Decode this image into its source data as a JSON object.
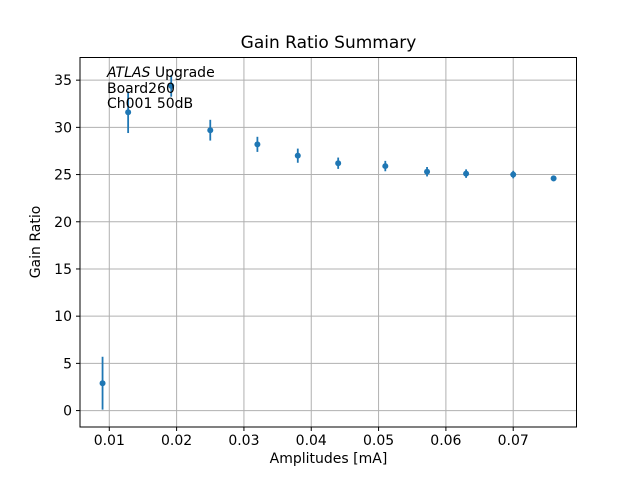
{
  "figure": {
    "title": "Gain Ratio Summary",
    "xlabel": "Amplitudes [mA]",
    "ylabel": "Gain Ratio",
    "annotation": {
      "line1_italic": "ATLAS",
      "line1_rest": " Upgrade",
      "line2": "Board260",
      "line3": "Ch001 50dB"
    }
  },
  "chart_data": {
    "type": "scatter",
    "title": "Gain Ratio Summary",
    "xlabel": "Amplitudes [mA]",
    "ylabel": "Gain Ratio",
    "annotations": [
      "ATLAS Upgrade",
      "Board260",
      "Ch001 50dB"
    ],
    "grid": true,
    "legend": false,
    "error_bars": true,
    "xlim": [
      0.00565,
      0.0794
    ],
    "ylim": [
      -1.74,
      37.4
    ],
    "xticks": [
      0.01,
      0.02,
      0.03,
      0.04,
      0.05,
      0.06,
      0.07
    ],
    "yticks": [
      0,
      5,
      10,
      15,
      20,
      25,
      30,
      35
    ],
    "colors": {
      "marker": "#1f77b4",
      "grid": "#b0b0b0",
      "spine": "#000000",
      "text": "#000000"
    },
    "series": [
      {
        "name": "Gain Ratio",
        "x": [
          0.009,
          0.0128,
          0.0192,
          0.025,
          0.032,
          0.038,
          0.044,
          0.051,
          0.0572,
          0.063,
          0.07,
          0.076
        ],
        "y": [
          2.9,
          31.6,
          34.4,
          29.7,
          28.2,
          27.0,
          26.2,
          25.9,
          25.3,
          25.1,
          25.0,
          24.6
        ],
        "yerr": [
          2.8,
          2.2,
          1.15,
          1.1,
          0.8,
          0.75,
          0.6,
          0.55,
          0.5,
          0.45,
          0.4,
          0.3
        ]
      }
    ]
  }
}
